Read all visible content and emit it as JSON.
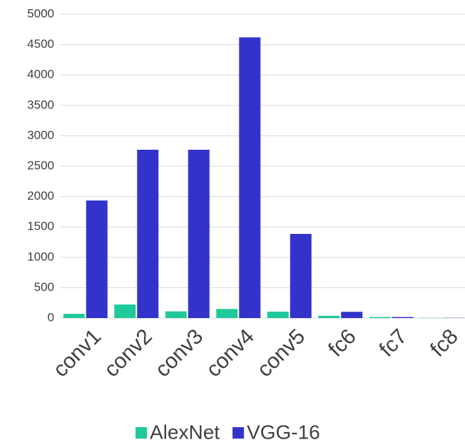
{
  "chart_data": {
    "type": "bar",
    "categories": [
      "conv1",
      "conv2",
      "conv3",
      "conv4",
      "conv5",
      "fc6",
      "fc7",
      "fc8"
    ],
    "series": [
      {
        "name": "AlexNet",
        "color": "#20c99a",
        "values": [
          70,
          223,
          110,
          150,
          105,
          38,
          17,
          4
        ]
      },
      {
        "name": "VGG-16",
        "color": "#3333cc",
        "values": [
          1935,
          2770,
          2770,
          4620,
          1385,
          103,
          17,
          4
        ]
      }
    ],
    "ylim": [
      0,
      5000
    ],
    "yticks": [
      0,
      500,
      1000,
      1500,
      2000,
      2500,
      3000,
      3500,
      4000,
      4500,
      5000
    ],
    "grid": true,
    "legend": "bottom"
  }
}
